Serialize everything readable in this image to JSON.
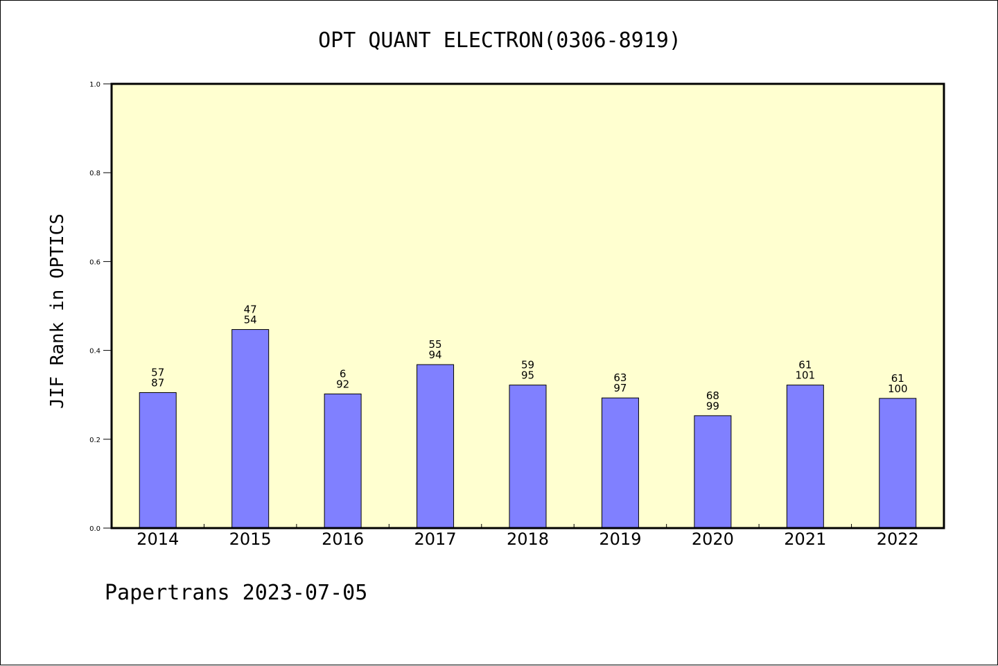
{
  "chart_data": {
    "type": "bar",
    "title": "OPT QUANT ELECTRON(0306-8919)",
    "xlabel": "",
    "ylabel": "JIF Rank in OPTICS",
    "footer": "Papertrans 2023-07-05",
    "ylim": [
      0,
      1.0
    ],
    "yticks": [
      "0.0",
      "0.2",
      "0.4",
      "0.6",
      "0.8",
      "1.0"
    ],
    "grid": false,
    "colors": {
      "plot_background": "#ffffd0",
      "bar_fill": "#8080ff",
      "bar_stroke": "#000000"
    },
    "categories": [
      "2014",
      "2015",
      "2016",
      "2017",
      "2018",
      "2019",
      "2020",
      "2021",
      "2022"
    ],
    "values": [
      0.305,
      0.447,
      0.302,
      0.368,
      0.322,
      0.293,
      0.253,
      0.322,
      0.292
    ],
    "rank": [
      "57",
      "47",
      "6",
      "55",
      "59",
      "63",
      "68",
      "61",
      "61"
    ],
    "total": [
      "87",
      "54",
      "92",
      "94",
      "95",
      "97",
      "99",
      "101",
      "100"
    ]
  }
}
